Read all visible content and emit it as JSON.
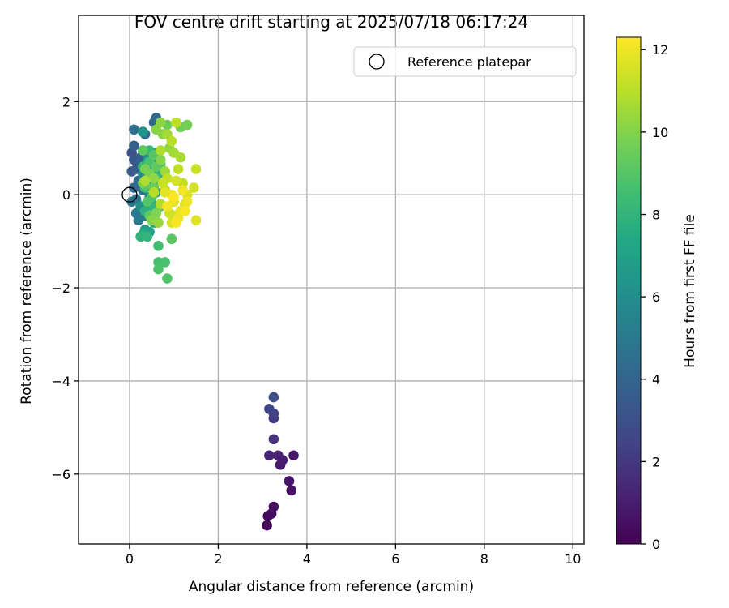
{
  "chart_data": {
    "type": "scatter",
    "title": "FOV centre drift starting at 2025/07/18 06:17:24",
    "xlabel": "Angular distance from reference (arcmin)",
    "ylabel": "Rotation from reference (arcmin)",
    "xlim": [
      -1.15,
      10.25
    ],
    "ylim": [
      -7.5,
      3.85
    ],
    "xticks": [
      0,
      2,
      4,
      6,
      8,
      10
    ],
    "yticks": [
      -6,
      -4,
      -2,
      0,
      2
    ],
    "xtick_labels": [
      "0",
      "2",
      "4",
      "6",
      "8",
      "10"
    ],
    "ytick_labels": [
      "−6",
      "−4",
      "−2",
      "0",
      "2"
    ],
    "grid": true,
    "legend": {
      "location": "upper right",
      "entries": [
        "Reference platepar"
      ]
    },
    "colorbar": {
      "label": "Hours from first FF file",
      "colormap": "viridis",
      "range": [
        0,
        12.3
      ],
      "ticks": [
        0,
        2,
        4,
        6,
        8,
        10,
        12
      ],
      "tick_labels": [
        "0",
        "2",
        "4",
        "6",
        "8",
        "10",
        "12"
      ]
    },
    "reference_point": {
      "x": 0,
      "y": 0
    },
    "points": [
      {
        "x": 3.1,
        "y": -7.1,
        "hours": 0.2
      },
      {
        "x": 3.12,
        "y": -6.9,
        "hours": 0.3
      },
      {
        "x": 3.2,
        "y": -6.85,
        "hours": 0.4
      },
      {
        "x": 3.25,
        "y": -6.7,
        "hours": 0.5
      },
      {
        "x": 3.65,
        "y": -6.35,
        "hours": 0.6
      },
      {
        "x": 3.6,
        "y": -6.15,
        "hours": 0.7
      },
      {
        "x": 3.4,
        "y": -5.8,
        "hours": 0.9
      },
      {
        "x": 3.45,
        "y": -5.7,
        "hours": 1.0
      },
      {
        "x": 3.7,
        "y": -5.6,
        "hours": 0.8
      },
      {
        "x": 3.35,
        "y": -5.6,
        "hours": 1.1
      },
      {
        "x": 3.15,
        "y": -5.6,
        "hours": 1.3
      },
      {
        "x": 3.25,
        "y": -5.25,
        "hours": 1.8
      },
      {
        "x": 3.25,
        "y": -4.8,
        "hours": 2.2
      },
      {
        "x": 3.25,
        "y": -4.7,
        "hours": 2.4
      },
      {
        "x": 3.15,
        "y": -4.6,
        "hours": 2.6
      },
      {
        "x": 3.25,
        "y": -4.35,
        "hours": 2.9
      },
      {
        "x": 0.05,
        "y": 0.9,
        "hours": 3.1
      },
      {
        "x": 0.1,
        "y": 0.75,
        "hours": 3.3
      },
      {
        "x": 0.15,
        "y": 0.55,
        "hours": 3.4
      },
      {
        "x": 0.05,
        "y": 0.5,
        "hours": 3.6
      },
      {
        "x": 0.2,
        "y": 0.65,
        "hours": 3.5
      },
      {
        "x": 0.25,
        "y": 0.8,
        "hours": 3.7
      },
      {
        "x": 0.1,
        "y": 1.05,
        "hours": 3.8
      },
      {
        "x": 0.3,
        "y": 0.95,
        "hours": 3.9
      },
      {
        "x": 0.4,
        "y": 0.6,
        "hours": 4.0
      },
      {
        "x": 0.55,
        "y": 1.55,
        "hours": 4.1
      },
      {
        "x": 0.6,
        "y": 1.65,
        "hours": 4.2
      },
      {
        "x": 0.35,
        "y": 1.3,
        "hours": 4.4
      },
      {
        "x": 0.1,
        "y": 1.4,
        "hours": 4.5
      },
      {
        "x": 0.2,
        "y": 0.3,
        "hours": 4.3
      },
      {
        "x": 0.3,
        "y": 0.1,
        "hours": 4.6
      },
      {
        "x": 0.15,
        "y": -0.1,
        "hours": 4.7
      },
      {
        "x": 0.1,
        "y": 0.15,
        "hours": 4.2
      },
      {
        "x": 0.05,
        "y": -0.15,
        "hours": 4.8
      },
      {
        "x": 0.15,
        "y": -0.4,
        "hours": 4.9
      },
      {
        "x": 0.2,
        "y": -0.55,
        "hours": 5.0
      },
      {
        "x": 0.35,
        "y": -0.45,
        "hours": 5.1
      },
      {
        "x": 0.45,
        "y": 0.4,
        "hours": 5.2
      },
      {
        "x": 0.5,
        "y": 0.75,
        "hours": 5.3
      },
      {
        "x": 0.4,
        "y": 0.85,
        "hours": 5.5
      },
      {
        "x": 0.55,
        "y": 0.2,
        "hours": 5.6
      },
      {
        "x": 0.3,
        "y": 0.45,
        "hours": 5.8
      },
      {
        "x": 0.45,
        "y": -0.05,
        "hours": 6.0
      },
      {
        "x": 0.25,
        "y": -0.25,
        "hours": 6.1
      },
      {
        "x": 0.3,
        "y": 1.35,
        "hours": 6.3
      },
      {
        "x": 0.5,
        "y": 0.55,
        "hours": 6.5
      },
      {
        "x": 0.6,
        "y": 0.05,
        "hours": 6.6
      },
      {
        "x": 0.35,
        "y": -0.75,
        "hours": 6.8
      },
      {
        "x": 0.45,
        "y": -0.8,
        "hours": 7.0
      },
      {
        "x": 0.5,
        "y": 0.3,
        "hours": 7.1
      },
      {
        "x": 0.4,
        "y": 0.7,
        "hours": 7.2
      },
      {
        "x": 0.55,
        "y": -0.6,
        "hours": 7.3
      },
      {
        "x": 0.6,
        "y": 0.9,
        "hours": 7.4
      },
      {
        "x": 0.3,
        "y": -0.85,
        "hours": 7.5
      },
      {
        "x": 0.5,
        "y": -0.2,
        "hours": 7.6
      },
      {
        "x": 0.65,
        "y": 0.45,
        "hours": 7.7
      },
      {
        "x": 0.35,
        "y": -0.35,
        "hours": 7.8
      },
      {
        "x": 0.25,
        "y": -0.9,
        "hours": 7.9
      },
      {
        "x": 0.4,
        "y": -0.9,
        "hours": 8.0
      },
      {
        "x": 0.55,
        "y": -0.3,
        "hours": 8.0
      },
      {
        "x": 0.3,
        "y": 0.6,
        "hours": 8.1
      },
      {
        "x": 0.45,
        "y": 0.95,
        "hours": 8.2
      },
      {
        "x": 0.6,
        "y": 0.35,
        "hours": 8.3
      },
      {
        "x": 0.35,
        "y": 0.15,
        "hours": 8.4
      },
      {
        "x": 0.65,
        "y": -1.1,
        "hours": 8.5
      },
      {
        "x": 0.65,
        "y": -1.45,
        "hours": 8.6
      },
      {
        "x": 0.8,
        "y": -1.45,
        "hours": 8.7
      },
      {
        "x": 0.65,
        "y": -1.6,
        "hours": 8.8
      },
      {
        "x": 0.85,
        "y": -1.8,
        "hours": 8.9
      },
      {
        "x": 0.45,
        "y": 0.7,
        "hours": 8.7
      },
      {
        "x": 0.5,
        "y": -0.05,
        "hours": 8.8
      },
      {
        "x": 0.4,
        "y": -0.15,
        "hours": 8.9
      },
      {
        "x": 0.7,
        "y": 0.65,
        "hours": 9.0
      },
      {
        "x": 0.55,
        "y": 0.85,
        "hours": 9.0
      },
      {
        "x": 0.95,
        "y": -0.95,
        "hours": 9.1
      },
      {
        "x": 0.35,
        "y": 0.2,
        "hours": 9.1
      },
      {
        "x": 0.3,
        "y": 0.95,
        "hours": 9.2
      },
      {
        "x": 0.6,
        "y": 0.6,
        "hours": 9.2
      },
      {
        "x": 0.7,
        "y": -0.25,
        "hours": 9.3
      },
      {
        "x": 0.45,
        "y": -0.45,
        "hours": 9.3
      },
      {
        "x": 0.55,
        "y": 0.15,
        "hours": 9.4
      },
      {
        "x": 0.85,
        "y": 1.5,
        "hours": 9.5
      },
      {
        "x": 1.15,
        "y": 1.45,
        "hours": 9.6
      },
      {
        "x": 1.3,
        "y": 1.5,
        "hours": 9.7
      },
      {
        "x": 0.45,
        "y": 0.45,
        "hours": 9.8
      },
      {
        "x": 0.35,
        "y": 0.55,
        "hours": 9.8
      },
      {
        "x": 0.6,
        "y": -0.4,
        "hours": 9.9
      },
      {
        "x": 0.3,
        "y": 0.25,
        "hours": 9.9
      },
      {
        "x": 0.5,
        "y": -0.55,
        "hours": 10.0
      },
      {
        "x": 0.7,
        "y": 0.75,
        "hours": 10.0
      },
      {
        "x": 0.6,
        "y": 1.4,
        "hours": 10.1
      },
      {
        "x": 0.7,
        "y": 1.55,
        "hours": 10.2
      },
      {
        "x": 0.75,
        "y": 1.3,
        "hours": 10.2
      },
      {
        "x": 0.9,
        "y": 1.0,
        "hours": 10.3
      },
      {
        "x": 0.55,
        "y": 0.35,
        "hours": 10.3
      },
      {
        "x": 0.65,
        "y": -0.6,
        "hours": 10.4
      },
      {
        "x": 0.8,
        "y": 0.5,
        "hours": 10.5
      },
      {
        "x": 0.85,
        "y": 1.3,
        "hours": 10.6
      },
      {
        "x": 1.0,
        "y": 0.9,
        "hours": 10.6
      },
      {
        "x": 1.15,
        "y": 0.8,
        "hours": 10.7
      },
      {
        "x": 0.7,
        "y": 0.95,
        "hours": 10.8
      },
      {
        "x": 0.35,
        "y": 0.3,
        "hours": 10.8
      },
      {
        "x": 0.55,
        "y": 0.05,
        "hours": 10.9
      },
      {
        "x": 0.7,
        "y": -0.2,
        "hours": 10.9
      },
      {
        "x": 0.95,
        "y": 1.15,
        "hours": 11.0
      },
      {
        "x": 0.8,
        "y": 0.1,
        "hours": 11.0
      },
      {
        "x": 1.05,
        "y": 1.55,
        "hours": 11.1
      },
      {
        "x": 1.1,
        "y": 0.55,
        "hours": 11.1
      },
      {
        "x": 0.85,
        "y": 0.35,
        "hours": 11.2
      },
      {
        "x": 1.2,
        "y": 0.25,
        "hours": 11.2
      },
      {
        "x": 0.75,
        "y": 0.25,
        "hours": 11.3
      },
      {
        "x": 1.5,
        "y": 0.55,
        "hours": 11.3
      },
      {
        "x": 0.9,
        "y": -0.4,
        "hours": 11.4
      },
      {
        "x": 1.0,
        "y": -0.45,
        "hours": 11.4
      },
      {
        "x": 1.45,
        "y": 0.15,
        "hours": 11.5
      },
      {
        "x": 1.05,
        "y": 0.3,
        "hours": 11.5
      },
      {
        "x": 0.95,
        "y": -0.6,
        "hours": 11.6
      },
      {
        "x": 1.3,
        "y": 0.0,
        "hours": 11.6
      },
      {
        "x": 1.25,
        "y": -0.2,
        "hours": 11.7
      },
      {
        "x": 1.5,
        "y": -0.55,
        "hours": 11.7
      },
      {
        "x": 0.8,
        "y": 0.05,
        "hours": 11.8
      },
      {
        "x": 1.0,
        "y": -0.15,
        "hours": 11.8
      },
      {
        "x": 1.15,
        "y": -0.35,
        "hours": 11.9
      },
      {
        "x": 0.95,
        "y": 0.0,
        "hours": 11.9
      },
      {
        "x": 1.3,
        "y": -0.15,
        "hours": 12.0
      },
      {
        "x": 1.1,
        "y": -0.5,
        "hours": 12.0
      },
      {
        "x": 1.2,
        "y": 0.1,
        "hours": 12.1
      },
      {
        "x": 0.85,
        "y": -0.25,
        "hours": 12.1
      },
      {
        "x": 1.05,
        "y": -0.6,
        "hours": 12.2
      },
      {
        "x": 1.25,
        "y": -0.35,
        "hours": 12.2
      },
      {
        "x": 1.0,
        "y": -0.05,
        "hours": 12.3
      }
    ]
  }
}
